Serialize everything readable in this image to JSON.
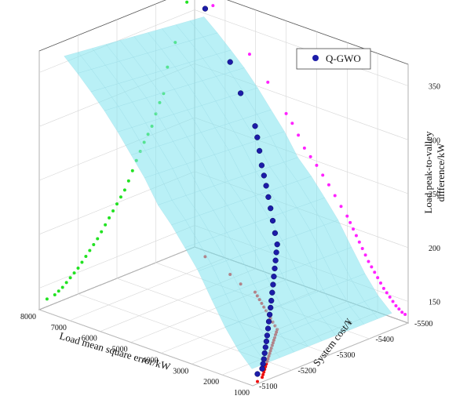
{
  "chart_data": {
    "type": "scatter3d",
    "title": "",
    "x_axis": {
      "label": "Load mean square error/kW",
      "range": [
        1000,
        8000
      ],
      "ticks": [
        "1000",
        "2000",
        "3000",
        "4000",
        "5000",
        "6000",
        "7000",
        "8000"
      ]
    },
    "y_axis": {
      "label": "System cost/¥",
      "range": [
        -5500,
        -5100
      ],
      "ticks": [
        "-5100",
        "-5200",
        "-5300",
        "-5400",
        "-5500"
      ]
    },
    "z_axis": {
      "label_line1": "Load peak-to-valley",
      "label_line2": "difference/kW",
      "range": [
        130,
        370
      ],
      "ticks": [
        "150",
        "200",
        "250",
        "300",
        "350"
      ]
    },
    "legend": {
      "label": "Q-GWO",
      "position": "top-right"
    },
    "colors": {
      "points": "#1c1ca8",
      "surface": "#7fe3ef",
      "floor_projection": "#ee1111",
      "xwall_projection": "#22e222",
      "ywall_projection": "#ff22ff"
    },
    "grid": true,
    "series": [
      {
        "name": "Q-GWO",
        "points": [
          [
            7400,
            -5480,
            360
          ],
          [
            6200,
            -5450,
            327
          ],
          [
            5600,
            -5430,
            307
          ],
          [
            5000,
            -5420,
            284
          ],
          [
            4800,
            -5410,
            277
          ],
          [
            4600,
            -5400,
            268
          ],
          [
            4400,
            -5390,
            258
          ],
          [
            4200,
            -5380,
            252
          ],
          [
            4000,
            -5370,
            246
          ],
          [
            3800,
            -5360,
            239
          ],
          [
            3600,
            -5350,
            232
          ],
          [
            3400,
            -5340,
            224
          ],
          [
            3200,
            -5330,
            216
          ],
          [
            3000,
            -5320,
            209
          ],
          [
            2900,
            -5310,
            204
          ],
          [
            2800,
            -5300,
            199
          ],
          [
            2700,
            -5290,
            194
          ],
          [
            2600,
            -5280,
            189
          ],
          [
            2500,
            -5270,
            184
          ],
          [
            2400,
            -5260,
            179
          ],
          [
            2300,
            -5250,
            174
          ],
          [
            2200,
            -5240,
            170
          ],
          [
            2100,
            -5230,
            166
          ],
          [
            2000,
            -5220,
            162
          ],
          [
            1900,
            -5210,
            158
          ],
          [
            1800,
            -5200,
            154
          ],
          [
            1700,
            -5190,
            151
          ],
          [
            1600,
            -5180,
            148
          ],
          [
            1500,
            -5170,
            145
          ],
          [
            1400,
            -5160,
            142
          ],
          [
            1300,
            -5150,
            140
          ],
          [
            1200,
            -5140,
            138
          ],
          [
            1100,
            -5120,
            137
          ]
        ]
      }
    ]
  }
}
